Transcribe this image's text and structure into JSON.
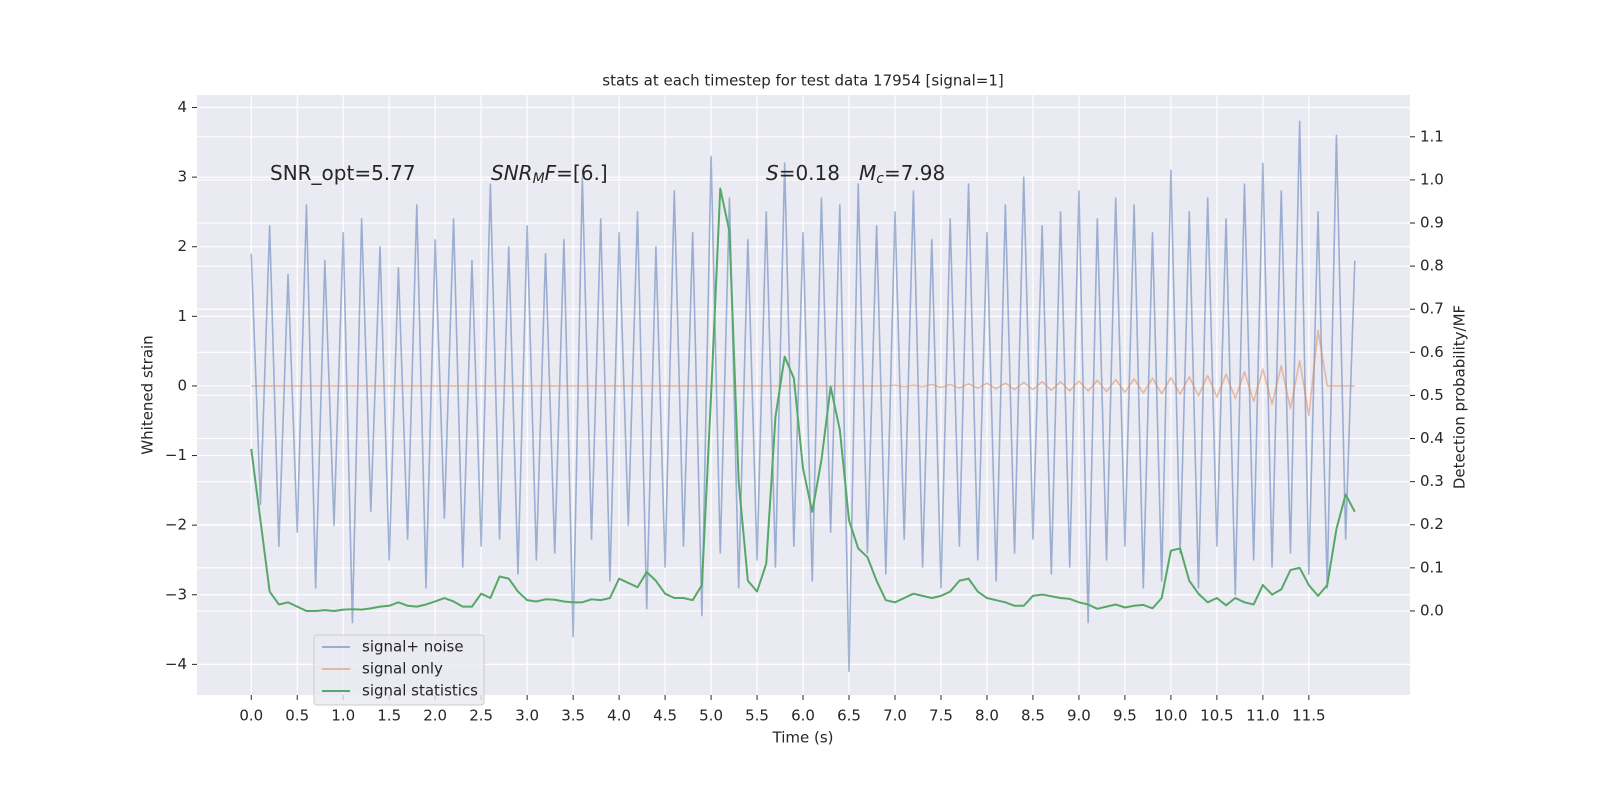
{
  "chart_data": {
    "type": "line",
    "title": "stats at each timestep for test data 17954 [signal=1]",
    "xlabel": "Time (s)",
    "ylabel": "Whitened strain",
    "y2label": "Detection probability/MF",
    "annotations": [
      [
        {
          "text": "SNR_opt=5.77"
        }
      ],
      [
        {
          "text": "SNR",
          "style": "italic"
        },
        {
          "text": "M",
          "style": "sub"
        },
        {
          "text": "F",
          "style": "italic"
        },
        {
          "text": "=[6.]"
        }
      ],
      [
        {
          "text": "S",
          "style": "italic"
        },
        {
          "text": "=0.18"
        }
      ],
      [
        {
          "text": "M",
          "style": "italic"
        },
        {
          "text": "c",
          "style": "sub"
        },
        {
          "text": "=7.98"
        }
      ]
    ],
    "x": [
      0,
      0.1,
      0.2,
      0.3,
      0.4,
      0.5,
      0.6,
      0.7,
      0.8,
      0.9,
      1,
      1.1,
      1.2,
      1.3,
      1.4,
      1.5,
      1.6,
      1.7,
      1.8,
      1.9,
      2,
      2.1,
      2.2,
      2.3,
      2.4,
      2.5,
      2.6,
      2.7,
      2.8,
      2.9,
      3,
      3.1,
      3.2,
      3.3,
      3.4,
      3.5,
      3.6,
      3.7,
      3.8,
      3.9,
      4,
      4.1,
      4.2,
      4.3,
      4.4,
      4.5,
      4.6,
      4.7,
      4.8,
      4.9,
      5,
      5.1,
      5.2,
      5.3,
      5.4,
      5.5,
      5.6,
      5.7,
      5.8,
      5.9,
      6,
      6.1,
      6.2,
      6.3,
      6.4,
      6.5,
      6.6,
      6.7,
      6.8,
      6.9,
      7,
      7.1,
      7.2,
      7.3,
      7.4,
      7.5,
      7.6,
      7.7,
      7.8,
      7.9,
      8,
      8.1,
      8.2,
      8.3,
      8.4,
      8.5,
      8.6,
      8.7,
      8.8,
      8.9,
      9,
      9.1,
      9.2,
      9.3,
      9.4,
      9.5,
      9.6,
      9.7,
      9.8,
      9.9,
      10,
      10.1,
      10.2,
      10.3,
      10.4,
      10.5,
      10.6,
      10.7,
      10.8,
      10.9,
      11,
      11.1,
      11.2,
      11.3,
      11.4,
      11.5,
      11.6,
      11.7,
      11.8,
      11.9,
      12
    ],
    "series": [
      {
        "name": "signal+ noise",
        "color": "#4c72b0",
        "opacity": 0.5,
        "values": [
          1.9,
          -1.7,
          2.3,
          -2.3,
          1.6,
          -2.1,
          2.6,
          -2.9,
          1.8,
          -2.0,
          2.2,
          -3.4,
          2.4,
          -1.8,
          2.0,
          -2.5,
          1.7,
          -2.2,
          2.6,
          -2.9,
          2.1,
          -1.9,
          2.4,
          -2.6,
          1.8,
          -2.3,
          2.9,
          -2.2,
          2.0,
          -2.7,
          2.3,
          -2.5,
          1.9,
          -2.4,
          2.1,
          -3.6,
          3.0,
          -2.2,
          2.4,
          -2.8,
          2.2,
          -2.0,
          2.5,
          -3.2,
          2.0,
          -2.6,
          2.8,
          -2.3,
          2.2,
          -3.3,
          3.3,
          -2.4,
          2.7,
          -2.9,
          2.1,
          -2.5,
          2.5,
          -2.6,
          3.2,
          -2.3,
          2.2,
          -2.8,
          2.7,
          -2.1,
          2.6,
          -4.1,
          2.9,
          -2.4,
          2.3,
          -2.7,
          2.5,
          -2.2,
          2.8,
          -2.6,
          2.1,
          -2.9,
          2.4,
          -2.3,
          2.9,
          -2.5,
          2.2,
          -2.8,
          2.6,
          -2.4,
          3.0,
          -2.2,
          2.3,
          -2.7,
          2.5,
          -2.6,
          2.8,
          -3.4,
          2.4,
          -2.5,
          2.7,
          -2.3,
          2.6,
          -2.9,
          2.2,
          -2.8,
          3.1,
          -2.4,
          2.5,
          -2.9,
          2.7,
          -2.3,
          2.4,
          -3.0,
          2.9,
          -2.5,
          3.2,
          -2.6,
          2.8,
          -2.4,
          3.8,
          -2.7,
          2.5,
          -2.9,
          3.6,
          -2.2,
          1.8
        ]
      },
      {
        "name": "signal only",
        "color": "#dd8452",
        "opacity": 0.5,
        "values": [
          0,
          0,
          0,
          0,
          0,
          0,
          0,
          0,
          0,
          0,
          0,
          0,
          0,
          0,
          0,
          0,
          0,
          0,
          0,
          0,
          0,
          0,
          0,
          0,
          0,
          0,
          0,
          0,
          0,
          0,
          0,
          0,
          0,
          0,
          0,
          0,
          0,
          0,
          0,
          0,
          0,
          0,
          0,
          0,
          0,
          0,
          0,
          0,
          0,
          0,
          0,
          0,
          0,
          0,
          0,
          0,
          0,
          0,
          0,
          0,
          0,
          0,
          0,
          0,
          0,
          0,
          0,
          0,
          0,
          0,
          0.01,
          -0.01,
          0.01,
          -0.01,
          0.02,
          -0.02,
          0.02,
          -0.03,
          0.03,
          -0.03,
          0.04,
          -0.04,
          0.04,
          -0.05,
          0.05,
          -0.05,
          0.06,
          -0.06,
          0.06,
          -0.07,
          0.07,
          -0.07,
          0.08,
          -0.08,
          0.09,
          -0.09,
          0.1,
          -0.1,
          0.11,
          -0.11,
          0.12,
          -0.12,
          0.13,
          -0.14,
          0.15,
          -0.16,
          0.17,
          -0.18,
          0.2,
          -0.22,
          0.24,
          -0.26,
          0.29,
          -0.32,
          0.36,
          -0.42,
          0.8,
          0,
          0,
          0,
          0
        ]
      },
      {
        "name": "signal statistics",
        "color": "#55a868",
        "opacity": 1,
        "axis": "y2",
        "values": [
          0.376,
          0.21,
          0.045,
          0.015,
          0.02,
          0.01,
          0.0,
          0.0,
          0.002,
          0.0,
          0.003,
          0.004,
          0.003,
          0.006,
          0.01,
          0.012,
          0.02,
          0.012,
          0.01,
          0.015,
          0.022,
          0.03,
          0.022,
          0.01,
          0.01,
          0.04,
          0.03,
          0.08,
          0.075,
          0.045,
          0.025,
          0.022,
          0.027,
          0.026,
          0.022,
          0.02,
          0.02,
          0.027,
          0.025,
          0.03,
          0.075,
          0.065,
          0.055,
          0.09,
          0.07,
          0.04,
          0.03,
          0.03,
          0.025,
          0.06,
          0.5,
          0.98,
          0.88,
          0.3,
          0.07,
          0.045,
          0.11,
          0.45,
          0.59,
          0.54,
          0.33,
          0.23,
          0.35,
          0.52,
          0.42,
          0.21,
          0.145,
          0.125,
          0.07,
          0.025,
          0.02,
          0.03,
          0.04,
          0.035,
          0.03,
          0.035,
          0.045,
          0.07,
          0.075,
          0.045,
          0.03,
          0.025,
          0.02,
          0.012,
          0.012,
          0.035,
          0.038,
          0.034,
          0.03,
          0.028,
          0.02,
          0.015,
          0.005,
          0.01,
          0.015,
          0.008,
          0.012,
          0.014,
          0.006,
          0.03,
          0.14,
          0.145,
          0.07,
          0.04,
          0.02,
          0.03,
          0.013,
          0.03,
          0.02,
          0.015,
          0.06,
          0.038,
          0.05,
          0.095,
          0.1,
          0.06,
          0.035,
          0.06,
          0.19,
          0.27,
          0.23
        ]
      }
    ],
    "xlim": [
      -0.59,
      12.6
    ],
    "xticks": [
      {
        "value": 0,
        "label": "0.0"
      },
      0.5,
      {
        "value": 1,
        "label": "1.0"
      },
      1.5,
      {
        "value": 2,
        "label": "2.0"
      },
      2.5,
      {
        "value": 3,
        "label": "3.0"
      },
      3.5,
      {
        "value": 4,
        "label": "4.0"
      },
      4.5,
      {
        "value": 5,
        "label": "5.0"
      },
      5.5,
      {
        "value": 6,
        "label": "6.0"
      },
      6.5,
      {
        "value": 7,
        "label": "7.0"
      },
      7.5,
      {
        "value": 8,
        "label": "8.0"
      },
      8.5,
      {
        "value": 9,
        "label": "9.0"
      },
      9.5,
      {
        "value": 10,
        "label": "10.0"
      },
      10.5,
      {
        "value": 11,
        "label": "11.0"
      },
      11.5
    ],
    "ylim": [
      -4.44,
      4.18
    ],
    "yticks": [
      {
        "value": -4,
        "label": "−4"
      },
      {
        "value": -3,
        "label": "−3"
      },
      {
        "value": -2,
        "label": "−2"
      },
      {
        "value": -1,
        "label": "−1"
      },
      0,
      1,
      2,
      3,
      4
    ],
    "y2lim": [
      -0.195,
      1.197
    ],
    "y2ticks": [
      {
        "value": 0,
        "label": "0.0"
      },
      0.1,
      0.2,
      0.3,
      0.4,
      0.5,
      0.6,
      0.7,
      0.8,
      0.9,
      {
        "value": 1,
        "label": "1.0"
      },
      1.1
    ],
    "grid": true,
    "legend": "lower left",
    "background": "#eaeaf2"
  }
}
